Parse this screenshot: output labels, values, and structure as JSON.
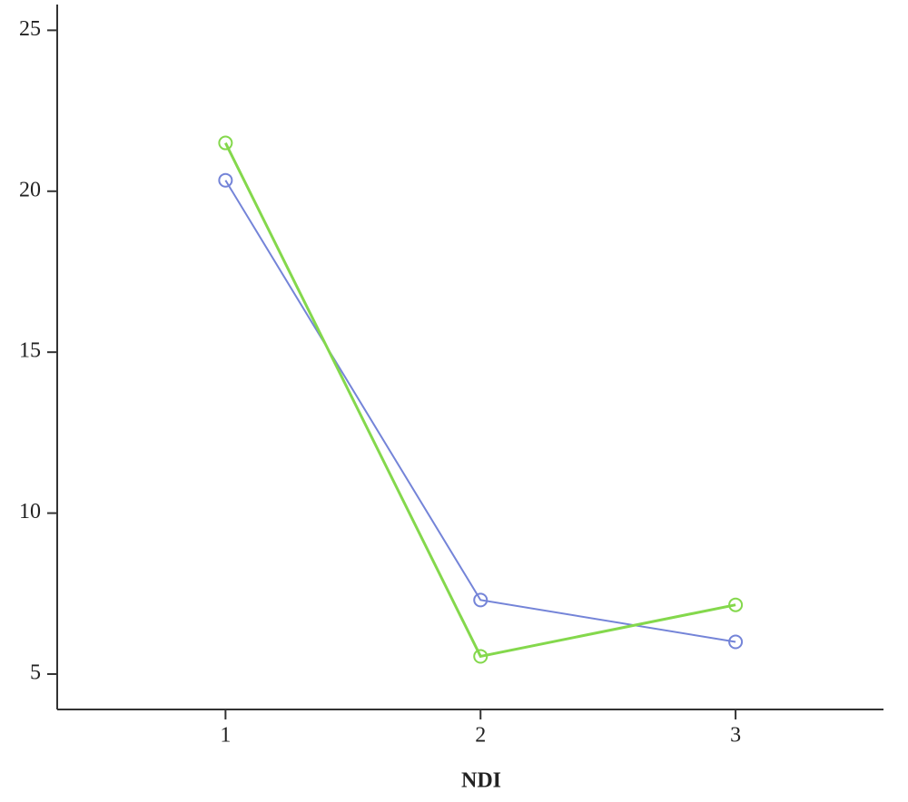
{
  "chart_data": {
    "type": "line",
    "xlabel": "NDI",
    "x": [
      1,
      2,
      3
    ],
    "series": [
      {
        "color": "#7484d8",
        "values": [
          20.34,
          7.3,
          6.0
        ]
      },
      {
        "color": "#84d84c",
        "values": [
          21.5,
          5.55,
          7.15
        ]
      }
    ],
    "xlim": [
      0.34,
      3.58
    ],
    "xticks": [
      1,
      2,
      3
    ],
    "ylim": [
      3.9,
      25.8
    ],
    "yticks": [
      5,
      10,
      15,
      20,
      25
    ]
  }
}
